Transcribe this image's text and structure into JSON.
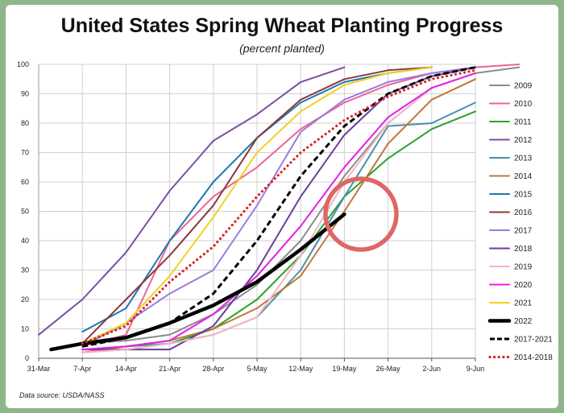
{
  "chart_data": {
    "type": "line",
    "title": "United States Spring Wheat Planting Progress",
    "subtitle": "(percent planted)",
    "source": "Data source: USDA/NASS",
    "xlabel": "",
    "ylabel": "",
    "ylim": [
      0,
      100
    ],
    "yticks": [
      0,
      10,
      20,
      30,
      40,
      50,
      60,
      70,
      80,
      90,
      100
    ],
    "xticks": [
      "31-Mar",
      "7-Apr",
      "14-Apr",
      "21-Apr",
      "28-Apr",
      "5-May",
      "12-May",
      "19-May",
      "26-May",
      "2-Jun",
      "9-Jun"
    ],
    "x_unit_note": "x values are days after 31-Mar",
    "grid": true,
    "legend_position": "right",
    "series": [
      {
        "name": "2009",
        "color": "#8c8c8c",
        "style": "solid",
        "points": [
          [
            7,
            5
          ],
          [
            14,
            6
          ],
          [
            21,
            8
          ],
          [
            28,
            15
          ],
          [
            35,
            25
          ],
          [
            42,
            40
          ],
          [
            49,
            62
          ],
          [
            56,
            80
          ],
          [
            63,
            92
          ],
          [
            70,
            97
          ],
          [
            77,
            99
          ]
        ]
      },
      {
        "name": "2010",
        "color": "#f06292",
        "style": "solid",
        "points": [
          [
            7,
            4
          ],
          [
            14,
            8
          ],
          [
            21,
            40
          ],
          [
            28,
            55
          ],
          [
            35,
            65
          ],
          [
            42,
            78
          ],
          [
            49,
            87
          ],
          [
            56,
            93
          ],
          [
            63,
            97
          ],
          [
            70,
            99
          ],
          [
            77,
            100
          ]
        ]
      },
      {
        "name": "2011",
        "color": "#2ca02c",
        "style": "solid",
        "points": [
          [
            7,
            2
          ],
          [
            14,
            3
          ],
          [
            21,
            5
          ],
          [
            28,
            10
          ],
          [
            35,
            20
          ],
          [
            42,
            35
          ],
          [
            49,
            55
          ],
          [
            56,
            68
          ],
          [
            63,
            78
          ],
          [
            70,
            84
          ]
        ]
      },
      {
        "name": "2012",
        "color": "#7b4fa0",
        "style": "solid",
        "points": [
          [
            0,
            8
          ],
          [
            7,
            20
          ],
          [
            14,
            36
          ],
          [
            21,
            57
          ],
          [
            28,
            74
          ],
          [
            35,
            83
          ],
          [
            42,
            94
          ],
          [
            49,
            99
          ]
        ]
      },
      {
        "name": "2013",
        "color": "#4a8fa8",
        "style": "solid",
        "points": [
          [
            7,
            3
          ],
          [
            14,
            4
          ],
          [
            21,
            5
          ],
          [
            28,
            8
          ],
          [
            35,
            14
          ],
          [
            42,
            30
          ],
          [
            49,
            55
          ],
          [
            56,
            79
          ],
          [
            63,
            80
          ],
          [
            70,
            87
          ]
        ]
      },
      {
        "name": "2014",
        "color": "#c0773a",
        "style": "solid",
        "points": [
          [
            7,
            2
          ],
          [
            14,
            4
          ],
          [
            21,
            6
          ],
          [
            28,
            10
          ],
          [
            35,
            17
          ],
          [
            42,
            28
          ],
          [
            49,
            50
          ],
          [
            56,
            73
          ],
          [
            63,
            88
          ],
          [
            70,
            95
          ]
        ]
      },
      {
        "name": "2015",
        "color": "#1f77b4",
        "style": "solid",
        "points": [
          [
            7,
            9
          ],
          [
            14,
            17
          ],
          [
            21,
            40
          ],
          [
            28,
            60
          ],
          [
            35,
            75
          ],
          [
            42,
            87
          ],
          [
            49,
            94
          ],
          [
            56,
            97
          ],
          [
            63,
            99
          ]
        ]
      },
      {
        "name": "2016",
        "color": "#8b3a3a",
        "style": "solid",
        "points": [
          [
            7,
            5
          ],
          [
            14,
            20
          ],
          [
            21,
            35
          ],
          [
            28,
            52
          ],
          [
            35,
            75
          ],
          [
            42,
            88
          ],
          [
            49,
            95
          ],
          [
            56,
            98
          ],
          [
            63,
            99
          ]
        ]
      },
      {
        "name": "2017",
        "color": "#9b7be0",
        "style": "solid",
        "points": [
          [
            7,
            4
          ],
          [
            14,
            12
          ],
          [
            21,
            22
          ],
          [
            28,
            30
          ],
          [
            35,
            52
          ],
          [
            42,
            77
          ],
          [
            49,
            88
          ],
          [
            56,
            94
          ],
          [
            63,
            97
          ],
          [
            70,
            99
          ]
        ]
      },
      {
        "name": "2018",
        "color": "#6a3d9a",
        "style": "solid",
        "points": [
          [
            7,
            3
          ],
          [
            14,
            3
          ],
          [
            21,
            3
          ],
          [
            28,
            11
          ],
          [
            35,
            30
          ],
          [
            42,
            55
          ],
          [
            49,
            76
          ],
          [
            56,
            90
          ],
          [
            63,
            96
          ],
          [
            70,
            99
          ]
        ]
      },
      {
        "name": "2019",
        "color": "#f4b6c2",
        "style": "solid",
        "points": [
          [
            7,
            2
          ],
          [
            14,
            3
          ],
          [
            21,
            5
          ],
          [
            28,
            8
          ],
          [
            35,
            14
          ],
          [
            42,
            35
          ],
          [
            49,
            60
          ],
          [
            56,
            80
          ],
          [
            63,
            92
          ],
          [
            70,
            97
          ]
        ]
      },
      {
        "name": "2020",
        "color": "#e51fe5",
        "style": "solid",
        "points": [
          [
            7,
            3
          ],
          [
            14,
            4
          ],
          [
            21,
            6
          ],
          [
            28,
            15
          ],
          [
            35,
            28
          ],
          [
            42,
            45
          ],
          [
            49,
            65
          ],
          [
            56,
            82
          ],
          [
            63,
            92
          ],
          [
            70,
            97
          ]
        ]
      },
      {
        "name": "2021",
        "color": "#f2d024",
        "style": "solid",
        "points": [
          [
            7,
            5
          ],
          [
            14,
            12
          ],
          [
            21,
            28
          ],
          [
            28,
            48
          ],
          [
            35,
            70
          ],
          [
            42,
            84
          ],
          [
            49,
            93
          ],
          [
            56,
            97
          ],
          [
            63,
            99
          ]
        ]
      },
      {
        "name": "2022",
        "color": "#000000",
        "style": "thick",
        "points": [
          [
            2,
            3
          ],
          [
            7,
            5
          ],
          [
            14,
            7
          ],
          [
            21,
            12
          ],
          [
            28,
            18
          ],
          [
            35,
            26
          ],
          [
            42,
            37
          ],
          [
            49,
            49
          ]
        ]
      },
      {
        "name": "2017-2021",
        "color": "#000000",
        "style": "dashed",
        "points": [
          [
            7,
            4
          ],
          [
            14,
            7
          ],
          [
            21,
            12
          ],
          [
            28,
            22
          ],
          [
            35,
            40
          ],
          [
            42,
            62
          ],
          [
            49,
            79
          ],
          [
            56,
            90
          ],
          [
            63,
            96
          ],
          [
            70,
            99
          ]
        ]
      },
      {
        "name": "2014-2018",
        "color": "#d62728",
        "style": "dotted",
        "points": [
          [
            7,
            5
          ],
          [
            14,
            11
          ],
          [
            21,
            26
          ],
          [
            28,
            38
          ],
          [
            35,
            55
          ],
          [
            42,
            70
          ],
          [
            49,
            81
          ],
          [
            56,
            89
          ],
          [
            63,
            95
          ],
          [
            70,
            98
          ]
        ]
      }
    ],
    "annotations": [
      {
        "type": "circle",
        "color": "#e06666"
      }
    ]
  }
}
